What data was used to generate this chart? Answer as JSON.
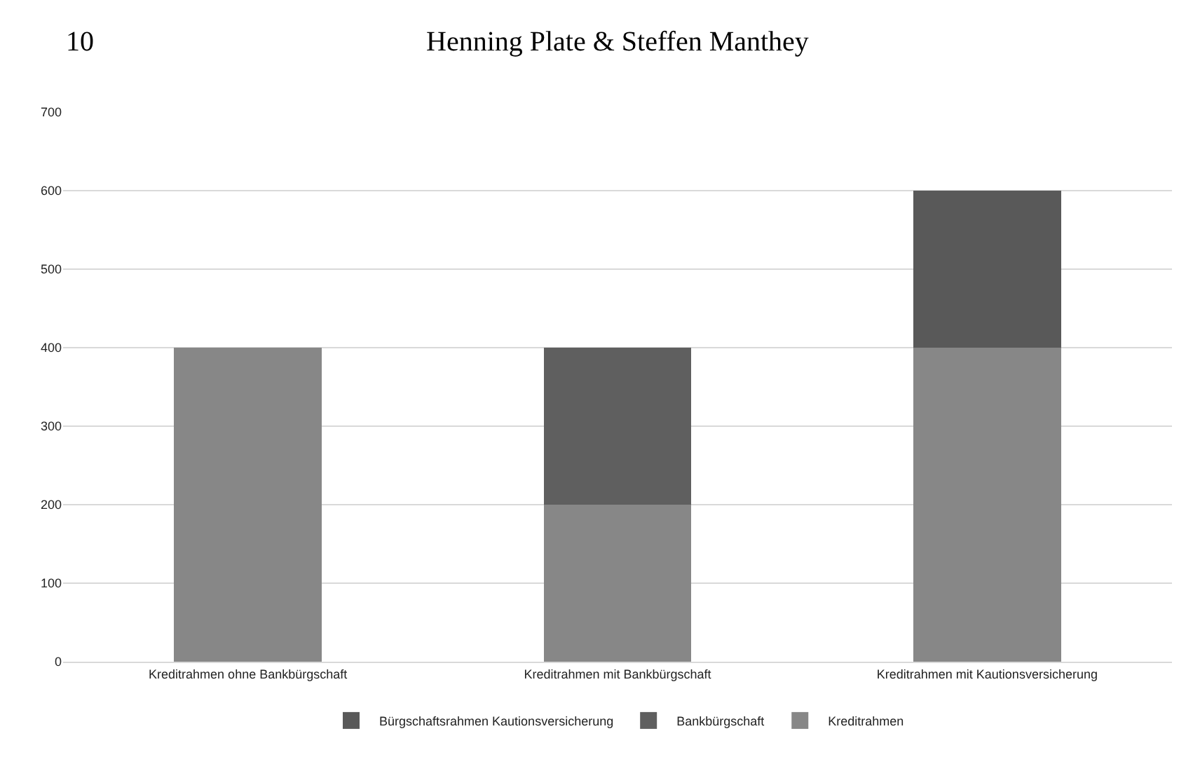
{
  "chart_data": {
    "type": "bar",
    "stacked": true,
    "categories": [
      "Kreditrahmen ohne Bankbürgschaft",
      "Kreditrahmen mit Bankbürgschaft",
      "Kreditrahmen mit Kautionsversicherung"
    ],
    "series": [
      {
        "name": "Kreditrahmen",
        "color": "#878787",
        "values": [
          400,
          200,
          400
        ]
      },
      {
        "name": "Bankbürgschaft",
        "color": "#5f5f5f",
        "values": [
          null,
          200,
          null
        ]
      },
      {
        "name": "Bürgschaftsrahmen Kautionsversicherung",
        "color": "#595959",
        "values": [
          null,
          null,
          200
        ]
      }
    ],
    "ylim": [
      0,
      700
    ],
    "yticks": [
      0,
      100,
      200,
      300,
      400,
      500,
      600,
      700
    ],
    "grid": "y",
    "legend": "bottom",
    "annotations": [
      "10",
      "Henning Plate & Steffen Manthey"
    ]
  }
}
